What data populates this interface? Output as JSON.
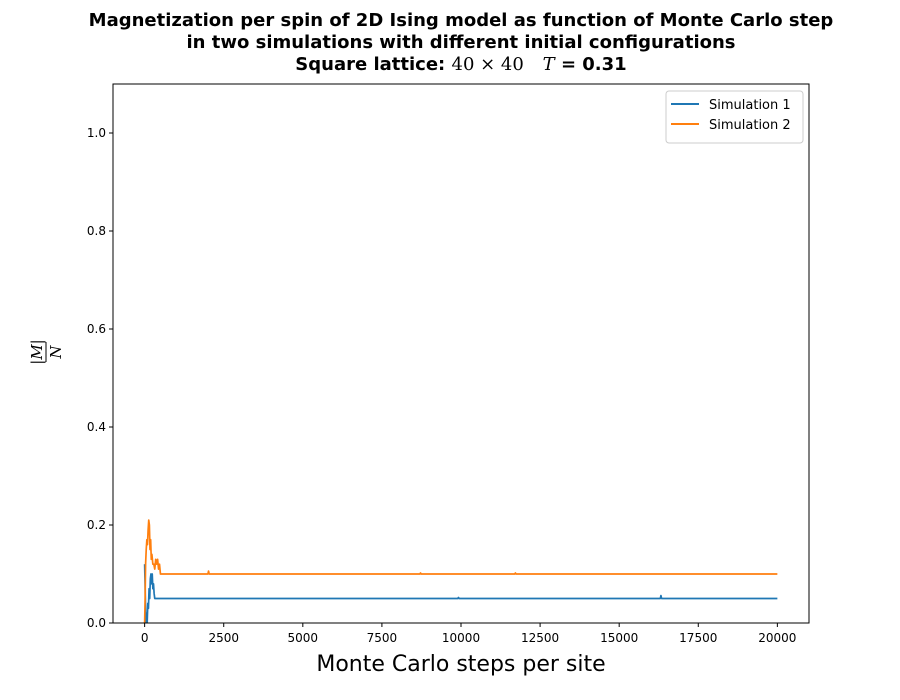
{
  "chart_data": {
    "type": "line",
    "title_line1": "Magnetization per spin of 2D Ising model as function of Monte Carlo step",
    "title_line2": "in two simulations with different initial configurations",
    "title_line3_prefix": "Square lattice: ",
    "title_line3_lattice": "40 × 40",
    "title_line3_T_symbol": "T",
    "title_line3_T_value": " = 0.31",
    "xlabel": "Monte Carlo steps per site",
    "ylabel_numerator": "|M|",
    "ylabel_denominator": "N",
    "xlim": [
      -1000,
      21000
    ],
    "ylim": [
      0,
      1.1
    ],
    "xticks": [
      0,
      2500,
      5000,
      7500,
      10000,
      12500,
      15000,
      17500,
      20000
    ],
    "yticks": [
      0.0,
      0.2,
      0.4,
      0.6,
      0.8,
      1.0
    ],
    "grid": false,
    "legend_position": "top-right",
    "series": [
      {
        "name": "Simulation 1",
        "color": "#1f77b4",
        "points": [
          [
            0,
            0.12
          ],
          [
            20,
            0.06
          ],
          [
            40,
            0.0
          ],
          [
            60,
            0.02
          ],
          [
            80,
            0.0
          ],
          [
            100,
            0.04
          ],
          [
            120,
            0.03
          ],
          [
            140,
            0.07
          ],
          [
            160,
            0.05
          ],
          [
            180,
            0.09
          ],
          [
            200,
            0.1
          ],
          [
            220,
            0.08
          ],
          [
            240,
            0.1
          ],
          [
            260,
            0.07
          ],
          [
            280,
            0.08
          ],
          [
            300,
            0.06
          ],
          [
            320,
            0.05
          ],
          [
            350,
            0.05
          ],
          [
            500,
            0.05
          ],
          [
            1000,
            0.05
          ],
          [
            5000,
            0.05
          ],
          [
            9900,
            0.05
          ],
          [
            9920,
            0.052
          ],
          [
            9940,
            0.05
          ],
          [
            16300,
            0.05
          ],
          [
            16320,
            0.056
          ],
          [
            16340,
            0.05
          ],
          [
            20000,
            0.05
          ]
        ]
      },
      {
        "name": "Simulation 2",
        "color": "#ff7f0e",
        "points": [
          [
            0,
            0.0
          ],
          [
            15,
            0.05
          ],
          [
            30,
            0.12
          ],
          [
            50,
            0.15
          ],
          [
            70,
            0.17
          ],
          [
            90,
            0.16
          ],
          [
            110,
            0.19
          ],
          [
            130,
            0.21
          ],
          [
            150,
            0.2
          ],
          [
            170,
            0.15
          ],
          [
            190,
            0.17
          ],
          [
            210,
            0.13
          ],
          [
            230,
            0.14
          ],
          [
            260,
            0.12
          ],
          [
            290,
            0.12
          ],
          [
            320,
            0.11
          ],
          [
            350,
            0.13
          ],
          [
            380,
            0.12
          ],
          [
            410,
            0.13
          ],
          [
            440,
            0.11
          ],
          [
            470,
            0.12
          ],
          [
            500,
            0.1
          ],
          [
            1000,
            0.1
          ],
          [
            2000,
            0.1
          ],
          [
            2020,
            0.106
          ],
          [
            2040,
            0.1
          ],
          [
            8700,
            0.1
          ],
          [
            8720,
            0.102
          ],
          [
            8740,
            0.1
          ],
          [
            11700,
            0.1
          ],
          [
            11720,
            0.102
          ],
          [
            11740,
            0.1
          ],
          [
            20000,
            0.1
          ]
        ]
      }
    ]
  }
}
